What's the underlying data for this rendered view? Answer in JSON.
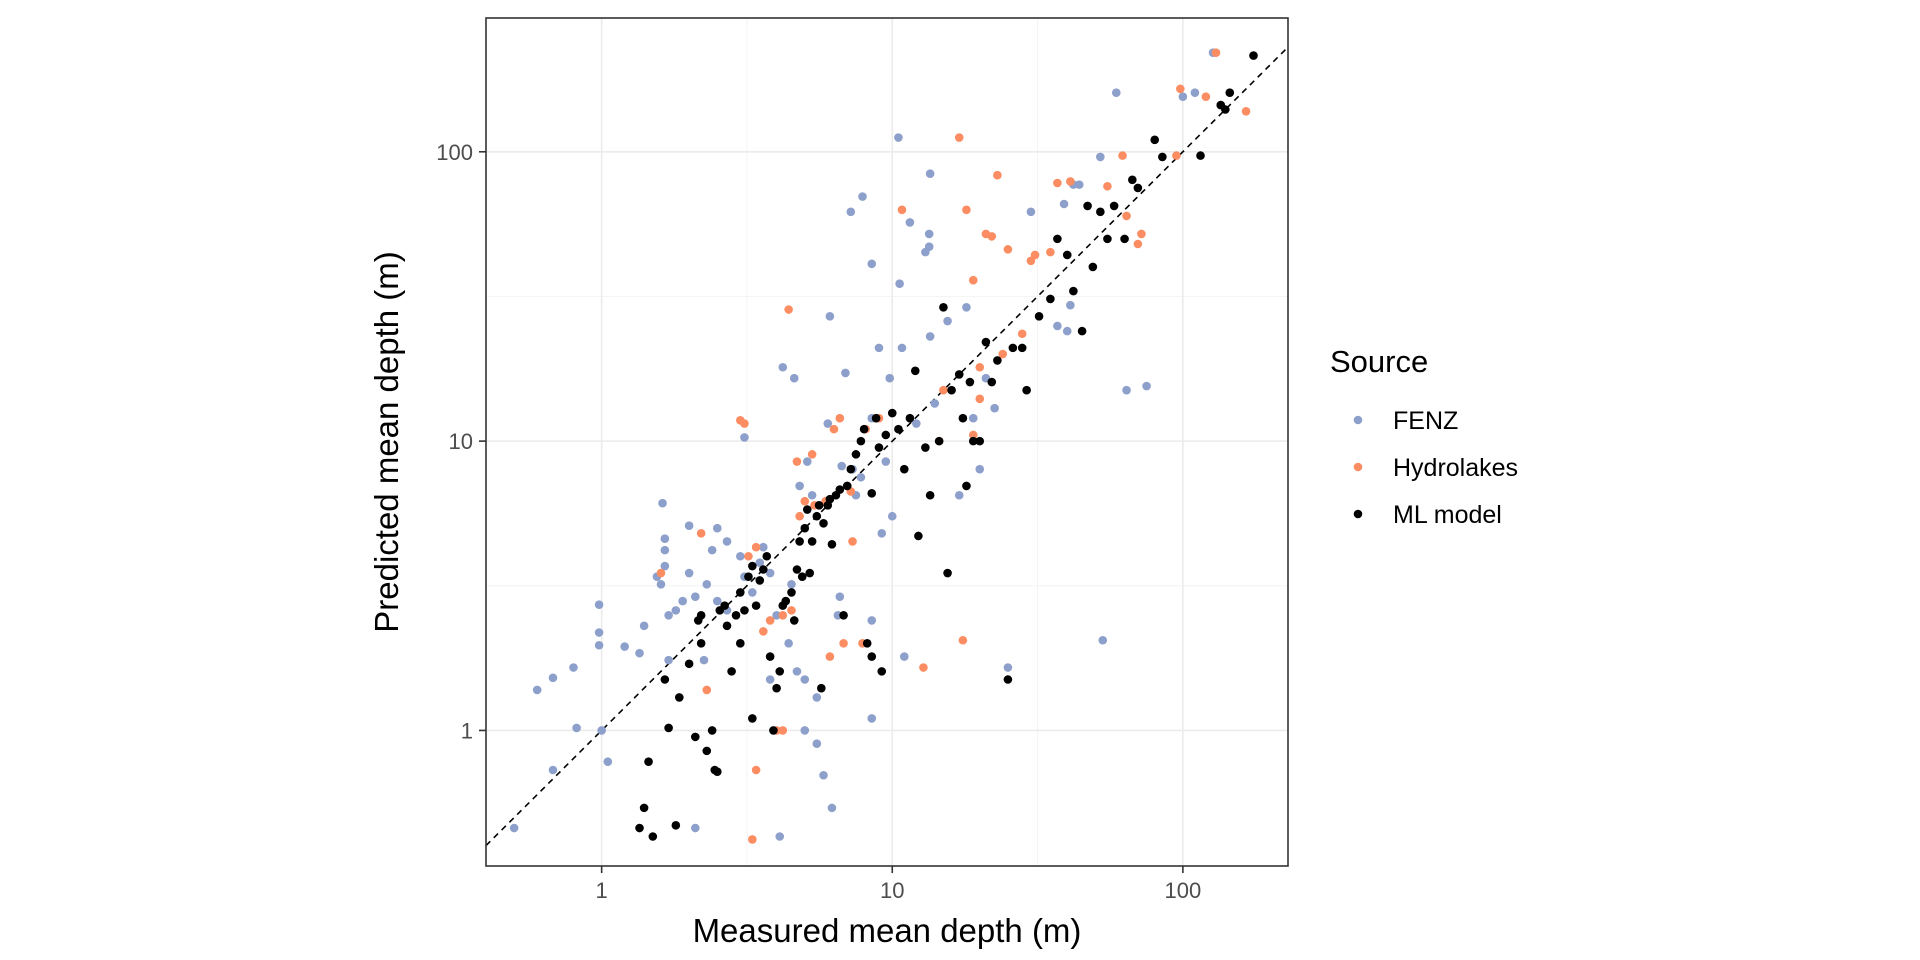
{
  "chart_data": {
    "type": "scatter",
    "x_scale": "log",
    "y_scale": "log",
    "xlabel": "Measured mean depth (m)",
    "ylabel": "Predicted mean depth (m)",
    "xlim": [
      0.4,
      230
    ],
    "ylim": [
      0.34,
      290
    ],
    "x_ticks": [
      1,
      10,
      100
    ],
    "y_ticks": [
      1,
      10,
      100
    ],
    "x_tick_labels": [
      "1",
      "10",
      "100"
    ],
    "y_tick_labels": [
      "1",
      "10",
      "100"
    ],
    "grid": true,
    "reference_line": "y = x (dashed)",
    "legend": {
      "title": "Source",
      "position": "right"
    },
    "series": [
      {
        "name": "FENZ",
        "color": "#8da0cb",
        "points": [
          [
            0.5,
            0.46
          ],
          [
            0.6,
            1.38
          ],
          [
            0.68,
            1.52
          ],
          [
            0.8,
            1.65
          ],
          [
            0.82,
            1.02
          ],
          [
            0.68,
            0.73
          ],
          [
            0.98,
            2.72
          ],
          [
            0.98,
            2.18
          ],
          [
            0.98,
            1.97
          ],
          [
            1.0,
            1.0
          ],
          [
            1.05,
            0.78
          ],
          [
            1.2,
            1.95
          ],
          [
            1.35,
            1.85
          ],
          [
            1.4,
            2.3
          ],
          [
            1.55,
            3.4
          ],
          [
            1.6,
            3.2
          ],
          [
            1.62,
            6.1
          ],
          [
            1.65,
            4.2
          ],
          [
            1.65,
            4.6
          ],
          [
            1.65,
            3.7
          ],
          [
            1.7,
            2.5
          ],
          [
            1.7,
            1.75
          ],
          [
            1.8,
            2.6
          ],
          [
            1.9,
            2.8
          ],
          [
            2.0,
            5.1
          ],
          [
            2.0,
            3.5
          ],
          [
            2.1,
            2.9
          ],
          [
            2.1,
            0.46
          ],
          [
            2.25,
            1.75
          ],
          [
            2.3,
            3.2
          ],
          [
            2.4,
            4.2
          ],
          [
            2.5,
            2.8
          ],
          [
            2.5,
            5.0
          ],
          [
            2.7,
            2.6
          ],
          [
            2.7,
            4.5
          ],
          [
            3.0,
            4.0
          ],
          [
            3.0,
            2.0
          ],
          [
            3.1,
            10.3
          ],
          [
            3.1,
            3.4
          ],
          [
            3.3,
            3.0
          ],
          [
            3.5,
            3.8
          ],
          [
            3.6,
            4.3
          ],
          [
            3.8,
            3.5
          ],
          [
            3.8,
            1.5
          ],
          [
            4.0,
            2.5
          ],
          [
            4.1,
            0.43
          ],
          [
            4.2,
            18.0
          ],
          [
            4.4,
            2.0
          ],
          [
            4.5,
            3.2
          ],
          [
            4.6,
            16.5
          ],
          [
            4.7,
            1.6
          ],
          [
            4.8,
            7.0
          ],
          [
            5.0,
            1.5
          ],
          [
            5.0,
            1.0
          ],
          [
            5.1,
            8.5
          ],
          [
            5.3,
            6.5
          ],
          [
            5.5,
            1.3
          ],
          [
            5.5,
            0.9
          ],
          [
            5.8,
            0.7
          ],
          [
            6.0,
            11.5
          ],
          [
            6.0,
            6.2
          ],
          [
            6.1,
            27.0
          ],
          [
            6.2,
            0.54
          ],
          [
            6.5,
            2.5
          ],
          [
            6.6,
            2.9
          ],
          [
            6.7,
            8.2
          ],
          [
            6.9,
            17.2
          ],
          [
            7.2,
            62.0
          ],
          [
            7.3,
            8.0
          ],
          [
            7.5,
            6.5
          ],
          [
            7.8,
            7.5
          ],
          [
            7.9,
            70.0
          ],
          [
            8.5,
            2.4
          ],
          [
            8.5,
            41.0
          ],
          [
            8.5,
            12.0
          ],
          [
            8.5,
            1.1
          ],
          [
            9.0,
            21.0
          ],
          [
            9.2,
            4.8
          ],
          [
            9.5,
            8.5
          ],
          [
            9.8,
            16.5
          ],
          [
            10.0,
            5.5
          ],
          [
            10.5,
            112.0
          ],
          [
            10.6,
            35.0
          ],
          [
            10.8,
            21.0
          ],
          [
            11.0,
            1.8
          ],
          [
            11.5,
            57.0
          ],
          [
            12.1,
            11.5
          ],
          [
            13.0,
            45.0
          ],
          [
            13.4,
            47.0
          ],
          [
            13.4,
            52.0
          ],
          [
            13.5,
            84.0
          ],
          [
            13.5,
            23.0
          ],
          [
            14.0,
            13.5
          ],
          [
            15.5,
            26.0
          ],
          [
            17.0,
            6.5
          ],
          [
            18.0,
            29.0
          ],
          [
            19.0,
            12.0
          ],
          [
            20.0,
            8.0
          ],
          [
            21.0,
            16.5
          ],
          [
            22.5,
            13.0
          ],
          [
            25.0,
            1.65
          ],
          [
            30.0,
            62.0
          ],
          [
            37.0,
            25.0
          ],
          [
            39.0,
            66.0
          ],
          [
            40.0,
            24.0
          ],
          [
            41.0,
            29.5
          ],
          [
            42.0,
            77.0
          ],
          [
            44.0,
            77.0
          ],
          [
            52.0,
            96.0
          ],
          [
            53.0,
            2.05
          ],
          [
            59.0,
            160.0
          ],
          [
            64.0,
            15.0
          ],
          [
            75.0,
            15.5
          ],
          [
            100.0,
            155.0
          ],
          [
            110.0,
            160.0
          ],
          [
            127.0,
            220.0
          ],
          [
            135.0,
            145.0
          ]
        ]
      },
      {
        "name": "Hydrolakes",
        "color": "#fc8d62",
        "points": [
          [
            1.6,
            3.5
          ],
          [
            2.2,
            4.8
          ],
          [
            2.3,
            1.38
          ],
          [
            3.0,
            11.8
          ],
          [
            3.1,
            11.5
          ],
          [
            3.2,
            4.0
          ],
          [
            3.3,
            0.42
          ],
          [
            3.4,
            0.73
          ],
          [
            3.4,
            4.3
          ],
          [
            3.6,
            2.2
          ],
          [
            3.8,
            2.4
          ],
          [
            4.0,
            1.0
          ],
          [
            4.2,
            2.5
          ],
          [
            4.2,
            1.0
          ],
          [
            4.4,
            28.5
          ],
          [
            4.5,
            2.6
          ],
          [
            4.7,
            8.5
          ],
          [
            4.8,
            5.5
          ],
          [
            5.0,
            6.2
          ],
          [
            5.3,
            9.0
          ],
          [
            5.4,
            6.0
          ],
          [
            5.6,
            6.0
          ],
          [
            5.9,
            6.2
          ],
          [
            6.1,
            1.8
          ],
          [
            6.3,
            11.0
          ],
          [
            6.6,
            12.0
          ],
          [
            6.8,
            2.0
          ],
          [
            7.0,
            7.0
          ],
          [
            7.2,
            6.7
          ],
          [
            7.3,
            4.5
          ],
          [
            7.9,
            2.0
          ],
          [
            8.1,
            11.0
          ],
          [
            9.0,
            12.0
          ],
          [
            10.8,
            63.0
          ],
          [
            12.8,
            1.65
          ],
          [
            14.5,
            10.0
          ],
          [
            15.0,
            15.0
          ],
          [
            17.0,
            112.0
          ],
          [
            17.5,
            2.05
          ],
          [
            18.0,
            63.0
          ],
          [
            19.0,
            36.0
          ],
          [
            19.0,
            10.5
          ],
          [
            20.0,
            14.0
          ],
          [
            20.0,
            18.0
          ],
          [
            21.0,
            52.0
          ],
          [
            22.0,
            51.0
          ],
          [
            23.0,
            83.0
          ],
          [
            24.0,
            20.0
          ],
          [
            25.0,
            46.0
          ],
          [
            28.0,
            23.5
          ],
          [
            30.0,
            42.0
          ],
          [
            31.0,
            44.0
          ],
          [
            35.0,
            45.0
          ],
          [
            37.0,
            78.0
          ],
          [
            41.0,
            79.0
          ],
          [
            55.0,
            76.0
          ],
          [
            62.0,
            97.0
          ],
          [
            64.0,
            60.0
          ],
          [
            70.0,
            48.0
          ],
          [
            72.0,
            52.0
          ],
          [
            95.0,
            97.0
          ],
          [
            98.0,
            165.0
          ],
          [
            120.0,
            155.0
          ],
          [
            130.0,
            220.0
          ],
          [
            165.0,
            138.0
          ]
        ]
      },
      {
        "name": "ML model",
        "color": "#000000",
        "points": [
          [
            1.35,
            0.46
          ],
          [
            1.4,
            0.54
          ],
          [
            1.45,
            0.78
          ],
          [
            1.5,
            0.43
          ],
          [
            1.65,
            1.5
          ],
          [
            1.7,
            1.02
          ],
          [
            1.8,
            0.47
          ],
          [
            1.85,
            1.3
          ],
          [
            2.0,
            1.7
          ],
          [
            2.1,
            0.95
          ],
          [
            2.15,
            2.4
          ],
          [
            2.2,
            2.5
          ],
          [
            2.2,
            2.0
          ],
          [
            2.3,
            0.85
          ],
          [
            2.4,
            1.0
          ],
          [
            2.45,
            0.73
          ],
          [
            2.5,
            0.72
          ],
          [
            2.55,
            2.6
          ],
          [
            2.65,
            2.7
          ],
          [
            2.7,
            2.3
          ],
          [
            2.8,
            1.6
          ],
          [
            2.9,
            2.5
          ],
          [
            3.0,
            3.0
          ],
          [
            3.0,
            2.0
          ],
          [
            3.1,
            2.6
          ],
          [
            3.2,
            3.4
          ],
          [
            3.3,
            1.1
          ],
          [
            3.3,
            3.7
          ],
          [
            3.4,
            2.7
          ],
          [
            3.5,
            3.3
          ],
          [
            3.6,
            3.6
          ],
          [
            3.7,
            4.0
          ],
          [
            3.8,
            1.8
          ],
          [
            3.9,
            1.0
          ],
          [
            4.0,
            1.4
          ],
          [
            4.1,
            1.6
          ],
          [
            4.2,
            2.7
          ],
          [
            4.3,
            2.8
          ],
          [
            4.5,
            3.0
          ],
          [
            4.6,
            2.4
          ],
          [
            4.7,
            3.6
          ],
          [
            4.8,
            4.5
          ],
          [
            4.9,
            3.4
          ],
          [
            5.0,
            5.0
          ],
          [
            5.1,
            5.8
          ],
          [
            5.2,
            3.5
          ],
          [
            5.3,
            4.5
          ],
          [
            5.5,
            5.5
          ],
          [
            5.6,
            6.0
          ],
          [
            5.7,
            1.4
          ],
          [
            5.8,
            5.2
          ],
          [
            6.0,
            6.0
          ],
          [
            6.1,
            6.3
          ],
          [
            6.2,
            4.4
          ],
          [
            6.4,
            6.5
          ],
          [
            6.6,
            6.8
          ],
          [
            6.8,
            2.5
          ],
          [
            7.0,
            7.0
          ],
          [
            7.2,
            8.0
          ],
          [
            7.5,
            9.0
          ],
          [
            7.8,
            10.0
          ],
          [
            8.0,
            11.0
          ],
          [
            8.2,
            2.0
          ],
          [
            8.5,
            6.6
          ],
          [
            8.5,
            1.8
          ],
          [
            8.8,
            12.0
          ],
          [
            9.0,
            9.5
          ],
          [
            9.2,
            1.6
          ],
          [
            9.5,
            10.5
          ],
          [
            10.0,
            12.5
          ],
          [
            10.5,
            11.0
          ],
          [
            11.0,
            8.0
          ],
          [
            11.5,
            12.0
          ],
          [
            12.0,
            17.5
          ],
          [
            12.3,
            4.7
          ],
          [
            13.0,
            9.5
          ],
          [
            13.5,
            6.5
          ],
          [
            14.5,
            10.0
          ],
          [
            15.0,
            29.0
          ],
          [
            15.5,
            3.5
          ],
          [
            16.0,
            15.0
          ],
          [
            17.0,
            17.0
          ],
          [
            17.5,
            12.0
          ],
          [
            18.0,
            7.0
          ],
          [
            18.5,
            16.0
          ],
          [
            19.0,
            10.0
          ],
          [
            20.0,
            10.0
          ],
          [
            21.0,
            22.0
          ],
          [
            22.0,
            16.0
          ],
          [
            23.0,
            19.0
          ],
          [
            25.0,
            1.5
          ],
          [
            26.0,
            21.0
          ],
          [
            28.0,
            21.0
          ],
          [
            29.0,
            15.0
          ],
          [
            32.0,
            27.0
          ],
          [
            35.0,
            31.0
          ],
          [
            37.0,
            50.0
          ],
          [
            40.0,
            44.0
          ],
          [
            42.0,
            33.0
          ],
          [
            45.0,
            24.0
          ],
          [
            47.0,
            65.0
          ],
          [
            49.0,
            40.0
          ],
          [
            52.0,
            62.0
          ],
          [
            55.0,
            50.0
          ],
          [
            58.0,
            65.0
          ],
          [
            63.0,
            50.0
          ],
          [
            67.0,
            80.0
          ],
          [
            70.0,
            75.0
          ],
          [
            80.0,
            110.0
          ],
          [
            85.0,
            96.0
          ],
          [
            115.0,
            97.0
          ],
          [
            135.0,
            145.0
          ],
          [
            140.0,
            140.0
          ],
          [
            145.0,
            160.0
          ],
          [
            175.0,
            215.0
          ]
        ]
      }
    ]
  }
}
